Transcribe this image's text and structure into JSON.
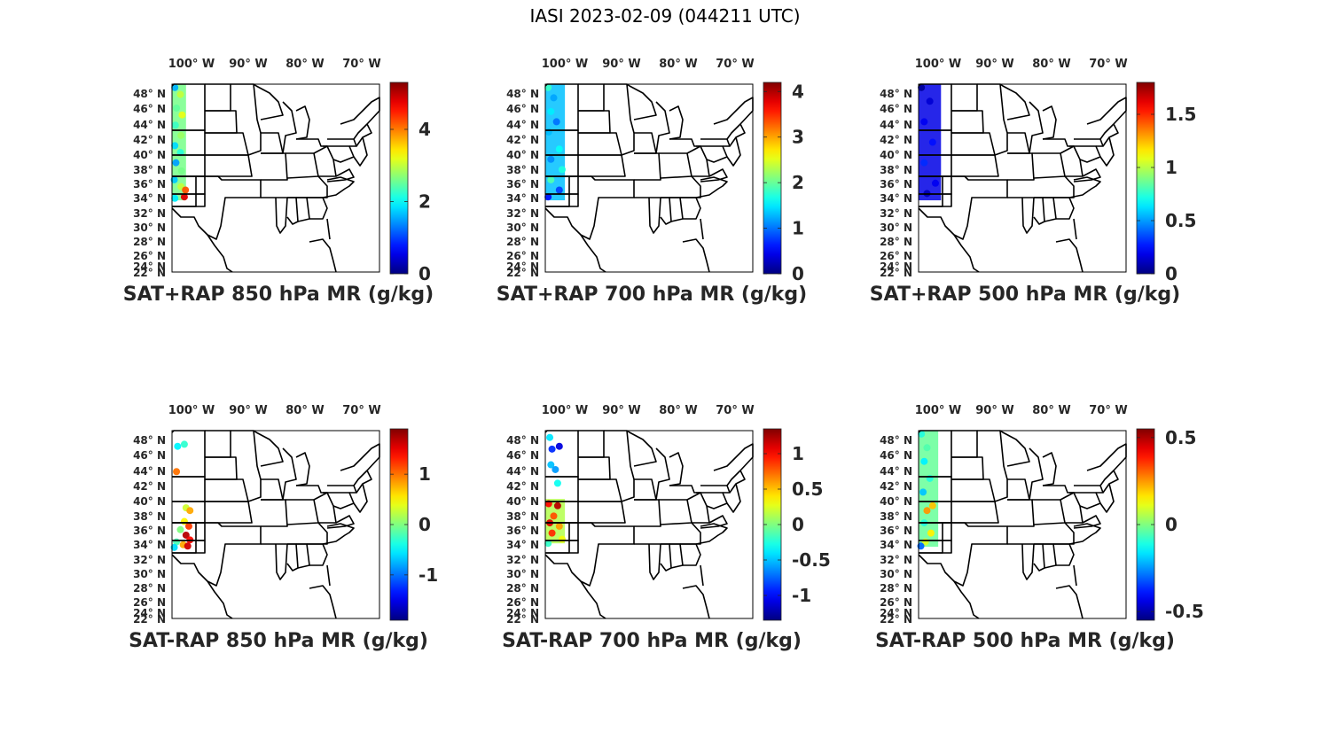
{
  "figure": {
    "title": "IASI 2023-02-09 (044211 UTC)"
  },
  "chart_data": [
    {
      "type": "scatter",
      "title": "SAT+RAP 850 hPa MR (g/kg)",
      "colormap": "jet",
      "clim": [
        0,
        5.3
      ],
      "colorbar_ticks": [
        0,
        2,
        4
      ],
      "colorbar_tick_labels": [
        "0",
        "2",
        "4"
      ],
      "lat_ticks": [
        "48° N",
        "46° N",
        "44° N",
        "42° N",
        "40° N",
        "38° N",
        "36° N",
        "34° N",
        "32° N",
        "30° N",
        "28° N",
        "26° N",
        "24° N",
        "22° N"
      ],
      "lon_ticks": [
        "100° W",
        "90° W",
        "80° W",
        "70° W"
      ],
      "xlim": [
        -104,
        -67
      ],
      "ylim": [
        22,
        49.5
      ],
      "swath": {
        "lon_range": [
          -104,
          -101.5
        ],
        "lat_range": [
          32.5,
          49.5
        ]
      },
      "points": [
        {
          "lon": -103.5,
          "lat": 49,
          "value": 1.6
        },
        {
          "lon": -102.5,
          "lat": 48,
          "value": 3.0
        },
        {
          "lon": -103.2,
          "lat": 46,
          "value": 2.5
        },
        {
          "lon": -102.2,
          "lat": 45,
          "value": 3.2
        },
        {
          "lon": -103.4,
          "lat": 43.5,
          "value": 2.3
        },
        {
          "lon": -102.4,
          "lat": 42,
          "value": 2.8
        },
        {
          "lon": -103.5,
          "lat": 40.5,
          "value": 1.8
        },
        {
          "lon": -102.5,
          "lat": 39.5,
          "value": 2.2
        },
        {
          "lon": -103.3,
          "lat": 38,
          "value": 1.5
        },
        {
          "lon": -102.3,
          "lat": 36.8,
          "value": 2.6
        },
        {
          "lon": -103.6,
          "lat": 35.5,
          "value": 1.7
        },
        {
          "lon": -102.4,
          "lat": 34.5,
          "value": 3.0
        },
        {
          "lon": -101.6,
          "lat": 34,
          "value": 4.2
        },
        {
          "lon": -101.8,
          "lat": 33,
          "value": 4.8
        },
        {
          "lon": -103.5,
          "lat": 32.8,
          "value": 1.9
        }
      ]
    },
    {
      "type": "scatter",
      "title": "SAT+RAP 700 hPa MR (g/kg)",
      "colormap": "jet",
      "clim": [
        0,
        4.2
      ],
      "colorbar_ticks": [
        0,
        1,
        2,
        3,
        4
      ],
      "colorbar_tick_labels": [
        "0",
        "1",
        "2",
        "3",
        "4"
      ],
      "lat_ticks": [
        "48° N",
        "46° N",
        "44° N",
        "42° N",
        "40° N",
        "38° N",
        "36° N",
        "34° N",
        "32° N",
        "30° N",
        "28° N",
        "26° N",
        "24° N",
        "22° N"
      ],
      "lon_ticks": [
        "100° W",
        "90° W",
        "80° W",
        "70° W"
      ],
      "xlim": [
        -104,
        -67
      ],
      "ylim": [
        22,
        49.5
      ],
      "swath": {
        "lon_range": [
          -104,
          -100.5
        ],
        "lat_range": [
          32.5,
          49.5
        ]
      },
      "points": [
        {
          "lon": -103.5,
          "lat": 49,
          "value": 1.8
        },
        {
          "lon": -102.5,
          "lat": 47.5,
          "value": 1.2
        },
        {
          "lon": -103.0,
          "lat": 45.5,
          "value": 1.5
        },
        {
          "lon": -102.0,
          "lat": 44,
          "value": 1.0
        },
        {
          "lon": -103.4,
          "lat": 42.5,
          "value": 1.3
        },
        {
          "lon": -101.5,
          "lat": 40,
          "value": 1.6
        },
        {
          "lon": -103.0,
          "lat": 38.5,
          "value": 1.1
        },
        {
          "lon": -101.0,
          "lat": 37,
          "value": 1.7
        },
        {
          "lon": -103.0,
          "lat": 35.5,
          "value": 1.9
        },
        {
          "lon": -101.5,
          "lat": 34,
          "value": 0.8
        },
        {
          "lon": -103.5,
          "lat": 33,
          "value": 0.6
        }
      ]
    },
    {
      "type": "scatter",
      "title": "SAT+RAP 500 hPa MR (g/kg)",
      "colormap": "jet",
      "clim": [
        0,
        1.8
      ],
      "colorbar_ticks": [
        0,
        0.5,
        1,
        1.5
      ],
      "colorbar_tick_labels": [
        "0",
        "0.5",
        "1",
        "1.5"
      ],
      "lat_ticks": [
        "48° N",
        "46° N",
        "44° N",
        "42° N",
        "40° N",
        "38° N",
        "36° N",
        "34° N",
        "32° N",
        "30° N",
        "28° N",
        "26° N",
        "24° N",
        "22° N"
      ],
      "lon_ticks": [
        "100° W",
        "90° W",
        "80° W",
        "70° W"
      ],
      "xlim": [
        -104,
        -67
      ],
      "ylim": [
        22,
        49.5
      ],
      "swath": {
        "lon_range": [
          -104,
          -100
        ],
        "lat_range": [
          32.5,
          49.5
        ]
      },
      "points": [
        {
          "lon": -103.5,
          "lat": 49,
          "value": 0.05
        },
        {
          "lon": -102.0,
          "lat": 47,
          "value": 0.15
        },
        {
          "lon": -103.0,
          "lat": 44,
          "value": 0.2
        },
        {
          "lon": -101.5,
          "lat": 41,
          "value": 0.25
        },
        {
          "lon": -103.0,
          "lat": 38,
          "value": 0.3
        },
        {
          "lon": -101.0,
          "lat": 35,
          "value": 0.2
        },
        {
          "lon": -102.5,
          "lat": 33.5,
          "value": 0.1
        }
      ]
    },
    {
      "type": "scatter",
      "title": "SAT-RAP 850 hPa MR (g/kg)",
      "colormap": "jet",
      "clim": [
        -1.9,
        1.9
      ],
      "colorbar_ticks": [
        -1,
        0,
        1
      ],
      "colorbar_tick_labels": [
        "-1",
        "0",
        "1"
      ],
      "lat_ticks": [
        "48° N",
        "46° N",
        "44° N",
        "42° N",
        "40° N",
        "38° N",
        "36° N",
        "34° N",
        "32° N",
        "30° N",
        "28° N",
        "26° N",
        "24° N",
        "22° N"
      ],
      "lon_ticks": [
        "100° W",
        "90° W",
        "80° W",
        "70° W"
      ],
      "xlim": [
        -104,
        -67
      ],
      "ylim": [
        22,
        49.5
      ],
      "swath": null,
      "points": [
        {
          "lon": -103.0,
          "lat": 47.2,
          "value": -0.5
        },
        {
          "lon": -101.8,
          "lat": 47.5,
          "value": -0.3
        },
        {
          "lon": -103.2,
          "lat": 43.5,
          "value": 1.0
        },
        {
          "lon": -101.5,
          "lat": 38.2,
          "value": 0.3
        },
        {
          "lon": -100.8,
          "lat": 37.8,
          "value": 0.8
        },
        {
          "lon": -101.8,
          "lat": 36.2,
          "value": 0.5
        },
        {
          "lon": -101.0,
          "lat": 35.5,
          "value": 1.2
        },
        {
          "lon": -102.5,
          "lat": 35.0,
          "value": 0.0
        },
        {
          "lon": -101.5,
          "lat": 34.2,
          "value": 1.7
        },
        {
          "lon": -100.8,
          "lat": 33.5,
          "value": 1.4
        },
        {
          "lon": -103.2,
          "lat": 33.2,
          "value": -0.2
        },
        {
          "lon": -102.0,
          "lat": 32.8,
          "value": 0.8
        },
        {
          "lon": -101.2,
          "lat": 32.6,
          "value": 1.6
        },
        {
          "lon": -103.6,
          "lat": 32.4,
          "value": -0.6
        }
      ]
    },
    {
      "type": "scatter",
      "title": "SAT-RAP 700 hPa MR (g/kg)",
      "colormap": "jet",
      "clim": [
        -1.35,
        1.35
      ],
      "colorbar_ticks": [
        -1,
        -0.5,
        0,
        0.5,
        1
      ],
      "colorbar_tick_labels": [
        "-1",
        "-0.5",
        "0",
        "0.5",
        "1"
      ],
      "lat_ticks": [
        "48° N",
        "46° N",
        "44° N",
        "42° N",
        "40° N",
        "38° N",
        "36° N",
        "34° N",
        "32° N",
        "30° N",
        "28° N",
        "26° N",
        "24° N",
        "22° N"
      ],
      "lon_ticks": [
        "100° W",
        "90° W",
        "80° W",
        "70° W"
      ],
      "xlim": [
        -104,
        -67
      ],
      "ylim": [
        22,
        49.5
      ],
      "swath": {
        "lon_range": [
          -104,
          -100.5
        ],
        "lat_range": [
          33,
          39.5
        ]
      },
      "points": [
        {
          "lon": -103.2,
          "lat": 48.5,
          "value": -0.4
        },
        {
          "lon": -102.8,
          "lat": 46.8,
          "value": -0.9
        },
        {
          "lon": -101.5,
          "lat": 47.2,
          "value": -1.1
        },
        {
          "lon": -103.0,
          "lat": 44.5,
          "value": -0.5
        },
        {
          "lon": -102.2,
          "lat": 43.8,
          "value": -0.6
        },
        {
          "lon": -101.8,
          "lat": 41.8,
          "value": -0.3
        },
        {
          "lon": -103.4,
          "lat": 38.8,
          "value": 1.0
        },
        {
          "lon": -101.8,
          "lat": 38.5,
          "value": 1.2
        },
        {
          "lon": -102.5,
          "lat": 37,
          "value": 0.8
        },
        {
          "lon": -103.2,
          "lat": 36,
          "value": 1.1
        },
        {
          "lon": -101.5,
          "lat": 35.5,
          "value": 0.6
        },
        {
          "lon": -102.8,
          "lat": 34.5,
          "value": 0.9
        },
        {
          "lon": -101.0,
          "lat": 33.6,
          "value": 0.3
        },
        {
          "lon": -103.5,
          "lat": 33,
          "value": -0.2
        }
      ]
    },
    {
      "type": "scatter",
      "title": "SAT-RAP 500 hPa MR (g/kg)",
      "colormap": "jet",
      "clim": [
        -0.55,
        0.55
      ],
      "colorbar_ticks": [
        -0.5,
        0,
        0.5
      ],
      "colorbar_tick_labels": [
        "-0.5",
        "0",
        "0.5"
      ],
      "lat_ticks": [
        "48° N",
        "46° N",
        "44° N",
        "42° N",
        "40° N",
        "38° N",
        "36° N",
        "34° N",
        "32° N",
        "30° N",
        "28° N",
        "26° N",
        "24° N",
        "22° N"
      ],
      "lon_ticks": [
        "100° W",
        "90° W",
        "80° W",
        "70° W"
      ],
      "xlim": [
        -104,
        -67
      ],
      "ylim": [
        22,
        49.5
      ],
      "swath": {
        "lon_range": [
          -104,
          -100.5
        ],
        "lat_range": [
          32.5,
          49.5
        ]
      },
      "points": [
        {
          "lon": -103.5,
          "lat": 49,
          "value": -0.1
        },
        {
          "lon": -102.5,
          "lat": 47,
          "value": -0.05
        },
        {
          "lon": -103.0,
          "lat": 45,
          "value": -0.15
        },
        {
          "lon": -102.0,
          "lat": 42.5,
          "value": -0.1
        },
        {
          "lon": -103.2,
          "lat": 40.5,
          "value": -0.2
        },
        {
          "lon": -101.5,
          "lat": 38.5,
          "value": 0.2
        },
        {
          "lon": -102.5,
          "lat": 37.8,
          "value": 0.25
        },
        {
          "lon": -103.0,
          "lat": 36,
          "value": -0.1
        },
        {
          "lon": -101.8,
          "lat": 34.5,
          "value": 0.15
        },
        {
          "lon": -102.8,
          "lat": 33.2,
          "value": 0.1
        },
        {
          "lon": -103.6,
          "lat": 32.6,
          "value": -0.3
        }
      ]
    }
  ]
}
